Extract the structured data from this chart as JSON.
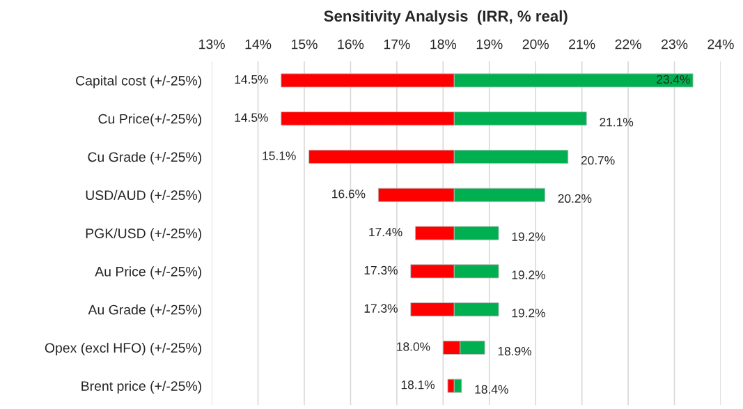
{
  "chart_data": {
    "type": "bar",
    "orientation": "horizontal",
    "title": "Sensitivity Analysis  (IRR, % real)",
    "categories": [
      "Capital cost (+/-25%)",
      "Cu Price(+/-25%)",
      "Cu Grade (+/-25%)",
      "USD/AUD (+/-25%)",
      "PGK/USD (+/-25%)",
      "Au Price (+/-25%)",
      "Au Grade (+/-25%)",
      "Opex (excl HFO) (+/-25%)",
      "Brent price (+/-25%)"
    ],
    "series": [
      {
        "color": "#ff0000",
        "base": [
          14.5,
          14.5,
          15.1,
          16.6,
          17.4,
          17.3,
          17.3,
          18.0,
          18.1
        ],
        "values": [
          3.74,
          3.74,
          3.14,
          1.64,
          0.84,
          0.94,
          0.94,
          0.37,
          0.14
        ]
      },
      {
        "color": "#00b050",
        "base": [
          18.24,
          18.24,
          18.24,
          18.24,
          18.24,
          18.24,
          18.24,
          18.37,
          18.24
        ],
        "values": [
          5.16,
          2.86,
          2.46,
          1.96,
          0.96,
          0.96,
          0.96,
          0.53,
          0.16
        ]
      }
    ],
    "annotations": [
      {
        "text": "14.5%",
        "x": 14.5,
        "y": "Capital cost (+/-25%)"
      },
      {
        "text": "14.5%",
        "x": 14.5,
        "y": "Cu Price(+/-25%)"
      },
      {
        "text": "15.1%",
        "x": 15.1,
        "y": "Cu Grade (+/-25%)"
      },
      {
        "text": "16.6%",
        "x": 16.6,
        "y": "USD/AUD (+/-25%)"
      },
      {
        "text": "17.4%",
        "x": 17.4,
        "y": "PGK/USD (+/-25%)"
      },
      {
        "text": "17.3%",
        "x": 17.3,
        "y": "Au Price (+/-25%)"
      },
      {
        "text": "17.3%",
        "x": 17.3,
        "y": "Au Grade (+/-25%)"
      },
      {
        "text": "18.0%",
        "x": 18.0,
        "y": "Opex (excl HFO) (+/-25%)"
      },
      {
        "text": "18.1%",
        "x": 18.1,
        "y": "Brent price (+/-25%)"
      },
      {
        "text": "23.4%",
        "x": 23.4,
        "y": "Capital cost (+/-25%)"
      },
      {
        "text": "21.1%",
        "x": 21.1,
        "y": "Cu Price(+/-25%)"
      },
      {
        "text": "20.7%",
        "x": 20.7,
        "y": "Cu Grade (+/-25%)"
      },
      {
        "text": "20.2%",
        "x": 20.2,
        "y": "USD/AUD (+/-25%)"
      },
      {
        "text": "19.2%",
        "x": 19.2,
        "y": "PGK/USD (+/-25%)"
      },
      {
        "text": "19.2%",
        "x": 19.2,
        "y": "Au Price (+/-25%)"
      },
      {
        "text": "19.2%",
        "x": 19.2,
        "y": "Au Grade (+/-25%)"
      },
      {
        "text": "18.9%",
        "x": 18.9,
        "y": "Opex (excl HFO) (+/-25%)"
      },
      {
        "text": "18.4%",
        "x": 18.4,
        "y": "Brent price (+/-25%)"
      }
    ],
    "xlim": [
      13,
      24
    ],
    "xticks": [
      {
        "value": 13,
        "label": "13%"
      },
      {
        "value": 14,
        "label": "14%"
      },
      {
        "value": 15,
        "label": "15%"
      },
      {
        "value": 16,
        "label": "16%"
      },
      {
        "value": 17,
        "label": "17%"
      },
      {
        "value": 18,
        "label": "18%"
      },
      {
        "value": 19,
        "label": "19%"
      },
      {
        "value": 20,
        "label": "20%"
      },
      {
        "value": 21,
        "label": "21%"
      },
      {
        "value": 22,
        "label": "22%"
      },
      {
        "value": 23,
        "label": "23%"
      },
      {
        "value": 24,
        "label": "24%"
      }
    ],
    "grid": "x",
    "legend": false
  }
}
